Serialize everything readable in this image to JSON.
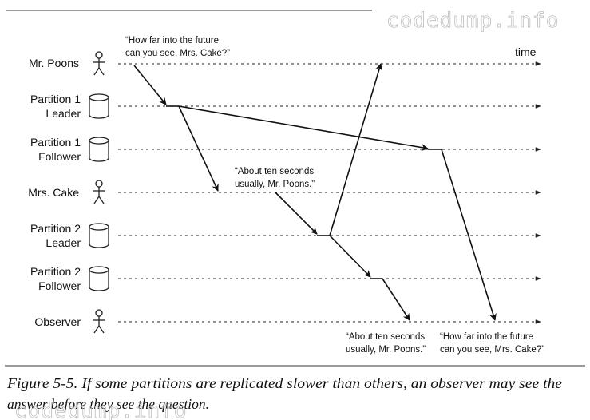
{
  "watermark_top": "codedump.info",
  "watermark_bottom": "codedump.info",
  "time_label": "time",
  "lanes": [
    {
      "line1": "Mr. Poons",
      "line2": "",
      "icon": "person-icon"
    },
    {
      "line1": "Partition 1",
      "line2": "Leader",
      "icon": "database-icon"
    },
    {
      "line1": "Partition 1",
      "line2": "Follower",
      "icon": "database-icon"
    },
    {
      "line1": "Mrs. Cake",
      "line2": "",
      "icon": "person-icon"
    },
    {
      "line1": "Partition 2",
      "line2": "Leader",
      "icon": "database-icon"
    },
    {
      "line1": "Partition 2",
      "line2": "Follower",
      "icon": "database-icon"
    },
    {
      "line1": "Observer",
      "line2": "",
      "icon": "person-icon"
    }
  ],
  "quotes": {
    "question_top": [
      "“How far into the future",
      "can you see, Mrs. Cake?”"
    ],
    "answer_mid": [
      "“About ten seconds",
      "usually, Mr. Poons.”"
    ],
    "answer_bottom": [
      "“About ten seconds",
      "usually, Mr. Poons.”"
    ],
    "question_bottom": [
      "“How far into the future",
      "can you see, Mrs. Cake?”"
    ]
  },
  "caption": {
    "line1": "Figure 5-5. If some partitions are replicated slower than others, an observer may see the",
    "line2": "answer before they see the question."
  }
}
